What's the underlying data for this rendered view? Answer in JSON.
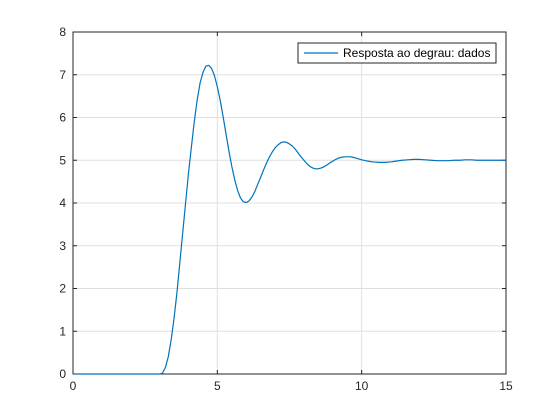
{
  "chart_data": {
    "type": "line",
    "title": "",
    "xlabel": "",
    "ylabel": "",
    "xlim": [
      0,
      15
    ],
    "ylim": [
      0,
      8
    ],
    "x_ticks": [
      0,
      5,
      10,
      15
    ],
    "y_ticks": [
      0,
      1,
      2,
      3,
      4,
      5,
      6,
      7,
      8
    ],
    "grid": true,
    "legend_position": "top-right",
    "series": [
      {
        "name": "Resposta ao degrau: dados",
        "color": "#0072BD",
        "x": [
          0,
          0.5,
          1.0,
          1.5,
          2.0,
          2.5,
          3.0,
          3.1,
          3.2,
          3.3,
          3.4,
          3.5,
          3.6,
          3.7,
          3.8,
          3.9,
          4.0,
          4.1,
          4.2,
          4.3,
          4.4,
          4.5,
          4.6,
          4.7,
          4.8,
          4.9,
          5.0,
          5.1,
          5.2,
          5.3,
          5.4,
          5.5,
          5.6,
          5.7,
          5.8,
          5.9,
          6.0,
          6.1,
          6.2,
          6.3,
          6.4,
          6.5,
          6.6,
          6.7,
          6.8,
          6.9,
          7.0,
          7.1,
          7.2,
          7.3,
          7.4,
          7.5,
          7.6,
          7.7,
          7.8,
          7.9,
          8.0,
          8.1,
          8.2,
          8.3,
          8.4,
          8.5,
          8.6,
          8.7,
          8.8,
          8.9,
          9.0,
          9.1,
          9.2,
          9.3,
          9.4,
          9.5,
          9.6,
          9.7,
          9.8,
          9.9,
          10.0,
          10.2,
          10.4,
          10.6,
          10.8,
          11.0,
          11.2,
          11.4,
          11.6,
          11.8,
          12.0,
          12.2,
          12.4,
          12.6,
          12.8,
          13.0,
          13.2,
          13.4,
          13.6,
          13.8,
          14.0,
          14.2,
          14.4,
          14.6,
          14.8,
          15.0
        ],
        "y": [
          0,
          0,
          0,
          0,
          0,
          0,
          0,
          0.02,
          0.15,
          0.4,
          0.8,
          1.3,
          1.9,
          2.6,
          3.3,
          4.0,
          4.7,
          5.3,
          5.9,
          6.4,
          6.8,
          7.05,
          7.2,
          7.22,
          7.15,
          6.98,
          6.72,
          6.4,
          6.02,
          5.62,
          5.22,
          4.86,
          4.55,
          4.3,
          4.12,
          4.03,
          4.01,
          4.05,
          4.14,
          4.27,
          4.44,
          4.6,
          4.77,
          4.93,
          5.07,
          5.19,
          5.29,
          5.36,
          5.41,
          5.43,
          5.42,
          5.38,
          5.33,
          5.26,
          5.17,
          5.08,
          5.0,
          4.92,
          4.86,
          4.82,
          4.8,
          4.8,
          4.82,
          4.85,
          4.89,
          4.94,
          4.98,
          5.02,
          5.05,
          5.07,
          5.08,
          5.08,
          5.08,
          5.07,
          5.05,
          5.03,
          5.01,
          4.98,
          4.96,
          4.95,
          4.95,
          4.96,
          4.98,
          5.0,
          5.01,
          5.02,
          5.02,
          5.01,
          5.0,
          4.99,
          4.99,
          4.99,
          5.0,
          5.0,
          5.01,
          5.01,
          5.0,
          5.0,
          5.0,
          5.0,
          5.0,
          5.0
        ]
      }
    ]
  }
}
